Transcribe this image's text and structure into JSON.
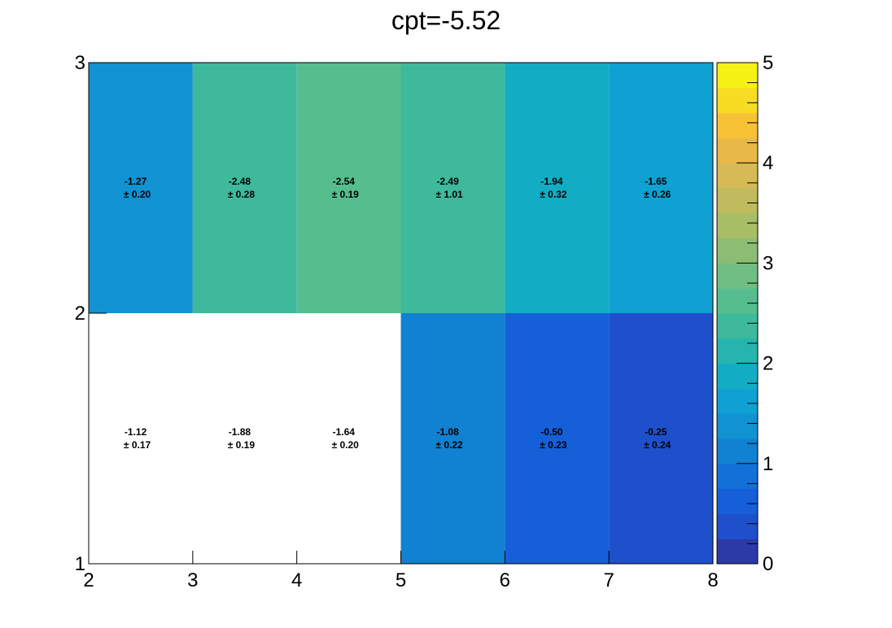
{
  "chart_data": {
    "type": "heatmap",
    "title": "cpt=-5.52",
    "xlabel": "",
    "ylabel": "",
    "x_edges": [
      2,
      3,
      4,
      5,
      6,
      7,
      8
    ],
    "y_edges": [
      1,
      2,
      3
    ],
    "xlim": [
      2,
      8
    ],
    "ylim": [
      1,
      3
    ],
    "x_ticks": [
      "2",
      "3",
      "4",
      "5",
      "6",
      "7",
      "8"
    ],
    "y_ticks": [
      "1",
      "2",
      "3"
    ],
    "zlim": [
      0,
      5
    ],
    "z_ticks": [
      "0",
      "1",
      "2",
      "3",
      "4",
      "5"
    ],
    "grid": false,
    "colorbar": "right",
    "cells": [
      {
        "x": 2.5,
        "y": 2.5,
        "value": "-1.27",
        "error": "± 0.20",
        "color_level": 1.27,
        "filled": true
      },
      {
        "x": 3.5,
        "y": 2.5,
        "value": "-2.48",
        "error": "± 0.28",
        "color_level": 2.48,
        "filled": true
      },
      {
        "x": 4.5,
        "y": 2.5,
        "value": "-2.54",
        "error": "± 0.19",
        "color_level": 2.54,
        "filled": true
      },
      {
        "x": 5.5,
        "y": 2.5,
        "value": "-2.49",
        "error": "± 1.01",
        "color_level": 2.49,
        "filled": true
      },
      {
        "x": 6.5,
        "y": 2.5,
        "value": "-1.94",
        "error": "± 0.32",
        "color_level": 1.94,
        "filled": true
      },
      {
        "x": 7.5,
        "y": 2.5,
        "value": "-1.65",
        "error": "± 0.26",
        "color_level": 1.65,
        "filled": true
      },
      {
        "x": 2.5,
        "y": 1.5,
        "value": "-1.12",
        "error": "± 0.17",
        "color_level": 0,
        "filled": false
      },
      {
        "x": 3.5,
        "y": 1.5,
        "value": "-1.88",
        "error": "± 0.19",
        "color_level": 0,
        "filled": false
      },
      {
        "x": 4.5,
        "y": 1.5,
        "value": "-1.64",
        "error": "± 0.20",
        "color_level": 0,
        "filled": false
      },
      {
        "x": 5.5,
        "y": 1.5,
        "value": "-1.08",
        "error": "± 0.22",
        "color_level": 1.08,
        "filled": true
      },
      {
        "x": 6.5,
        "y": 1.5,
        "value": "-0.50",
        "error": "± 0.23",
        "color_level": 0.5,
        "filled": true
      },
      {
        "x": 7.5,
        "y": 1.5,
        "value": "-0.25",
        "error": "± 0.24",
        "color_level": 0.25,
        "filled": true
      }
    ],
    "palette": [
      "#2c3aa8",
      "#1f50cc",
      "#155fd9",
      "#1270d9",
      "#1181d1",
      "#1192d2",
      "#0ea1d1",
      "#12adc4",
      "#25b5ae",
      "#3eb99b",
      "#56bd8f",
      "#70be81",
      "#8dbd72",
      "#a7bd66",
      "#c0bb5e",
      "#d6ba55",
      "#e8b946",
      "#f8c236",
      "#f6dc23",
      "#f6f216"
    ]
  }
}
